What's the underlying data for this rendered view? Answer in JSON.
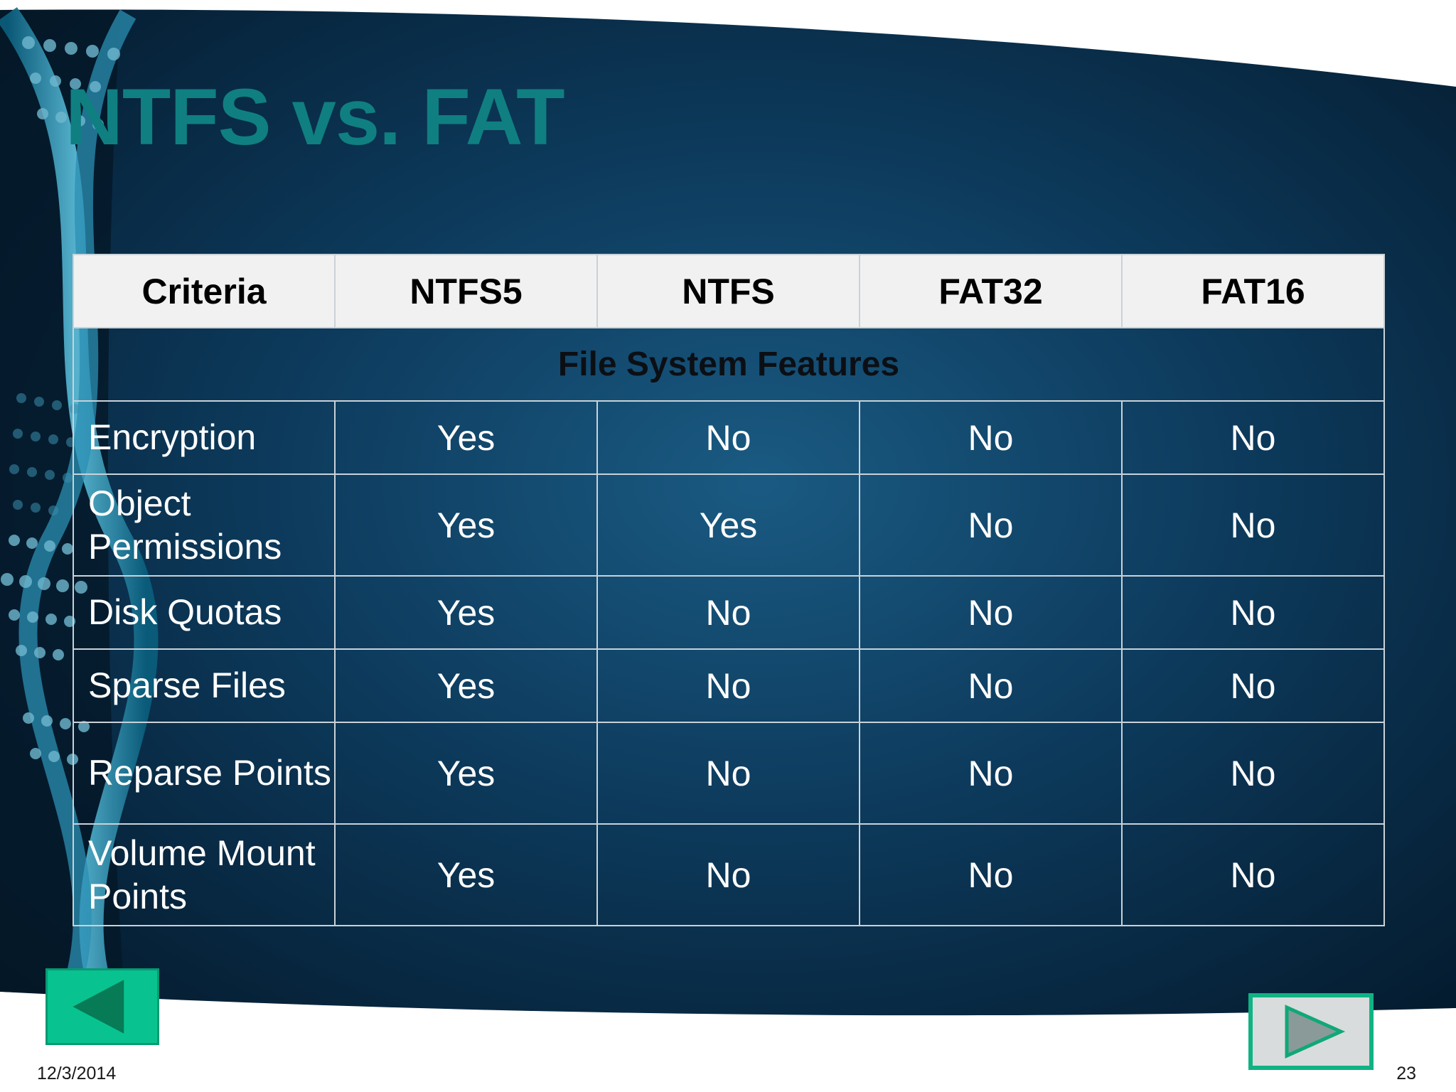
{
  "slide": {
    "title": "NTFS vs. FAT",
    "date": "12/3/2014",
    "page_number": "23"
  },
  "table": {
    "headers": [
      "Criteria",
      "NTFS5",
      "NTFS",
      "FAT32",
      "FAT16"
    ],
    "section_label": "File System Features",
    "rows": [
      {
        "criteria": "Encryption",
        "ntfs5": "Yes",
        "ntfs": "No",
        "fat32": "No",
        "fat16": "No"
      },
      {
        "criteria": "Object Permissions",
        "ntfs5": "Yes",
        "ntfs": "Yes",
        "fat32": "No",
        "fat16": "No"
      },
      {
        "criteria": "Disk Quotas",
        "ntfs5": "Yes",
        "ntfs": "No",
        "fat32": "No",
        "fat16": "No"
      },
      {
        "criteria": "Sparse Files",
        "ntfs5": "Yes",
        "ntfs": "No",
        "fat32": "No",
        "fat16": "No"
      },
      {
        "criteria": "Reparse Points",
        "ntfs5": "Yes",
        "ntfs": "No",
        "fat32": "No",
        "fat16": "No"
      },
      {
        "criteria": "Volume Mount Points",
        "ntfs5": "Yes",
        "ntfs": "No",
        "fat32": "No",
        "fat16": "No"
      }
    ]
  },
  "navigation": {
    "prev_icon": "triangle-left-icon",
    "next_icon": "triangle-right-icon"
  },
  "colors": {
    "title": "#0f7f82",
    "background_dark": "#07223a",
    "prev_button": "#08c38f",
    "next_button_border": "#10b383"
  }
}
